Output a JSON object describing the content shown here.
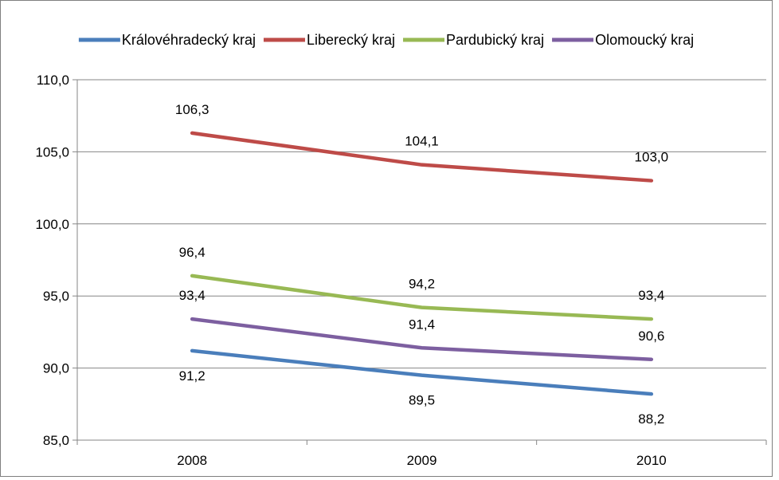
{
  "chart_data": {
    "type": "line",
    "x": [
      "2008",
      "2009",
      "2010"
    ],
    "y_ticks": [
      "85,0",
      "90,0",
      "95,0",
      "100,0",
      "105,0",
      "110,0"
    ],
    "ylim": [
      85,
      110
    ],
    "grid": true,
    "legend_position": "top",
    "series": [
      {
        "name": "Královéhradecký kraj",
        "color": "#4a7ebb",
        "values": [
          91.2,
          89.5,
          88.2
        ],
        "labels": [
          "91,2",
          "89,5",
          "88,2"
        ]
      },
      {
        "name": "Liberecký kraj",
        "color": "#be4b48",
        "values": [
          106.3,
          104.1,
          103.0
        ],
        "labels": [
          "106,3",
          "104,1",
          "103,0"
        ]
      },
      {
        "name": "Pardubický kraj",
        "color": "#98b954",
        "values": [
          96.4,
          94.2,
          93.4
        ],
        "labels": [
          "96,4",
          "94,2",
          "93,4"
        ]
      },
      {
        "name": "Olomoucký kraj",
        "color": "#7d5fa0",
        "values": [
          93.4,
          91.4,
          90.6
        ],
        "labels": [
          "93,4",
          "91,4",
          "90,6"
        ]
      }
    ]
  }
}
